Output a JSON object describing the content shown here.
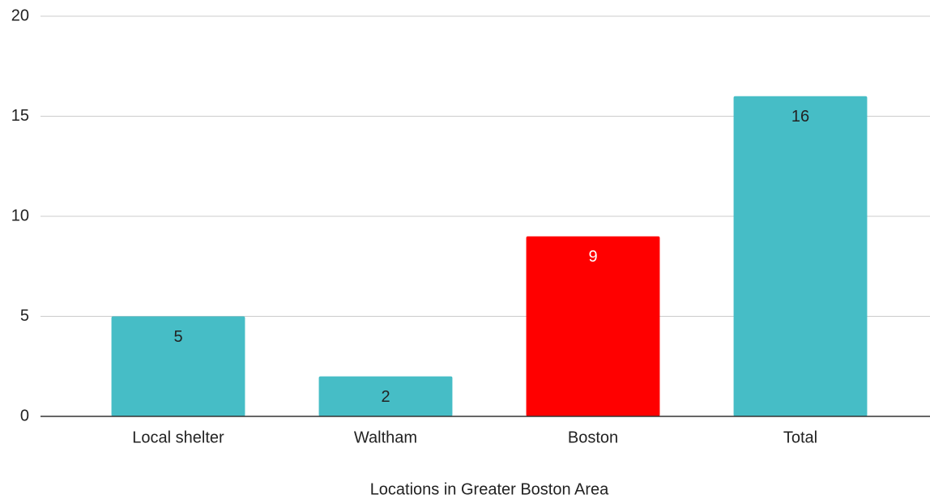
{
  "chart_data": {
    "type": "bar",
    "x_label": "Locations in Greater Boston Area",
    "categories": [
      "Local shelter",
      "Waltham",
      "Boston",
      "Total"
    ],
    "values": [
      5,
      2,
      9,
      16
    ],
    "colors": [
      "#46bdc6",
      "#46bdc6",
      "#ff0000",
      "#46bdc6"
    ],
    "value_label_colors": [
      "#222222",
      "#222222",
      "#ffffff",
      "#222222"
    ],
    "ylim": [
      0,
      20
    ],
    "yticks": [
      0,
      5,
      10,
      15,
      20
    ],
    "grid": true
  }
}
